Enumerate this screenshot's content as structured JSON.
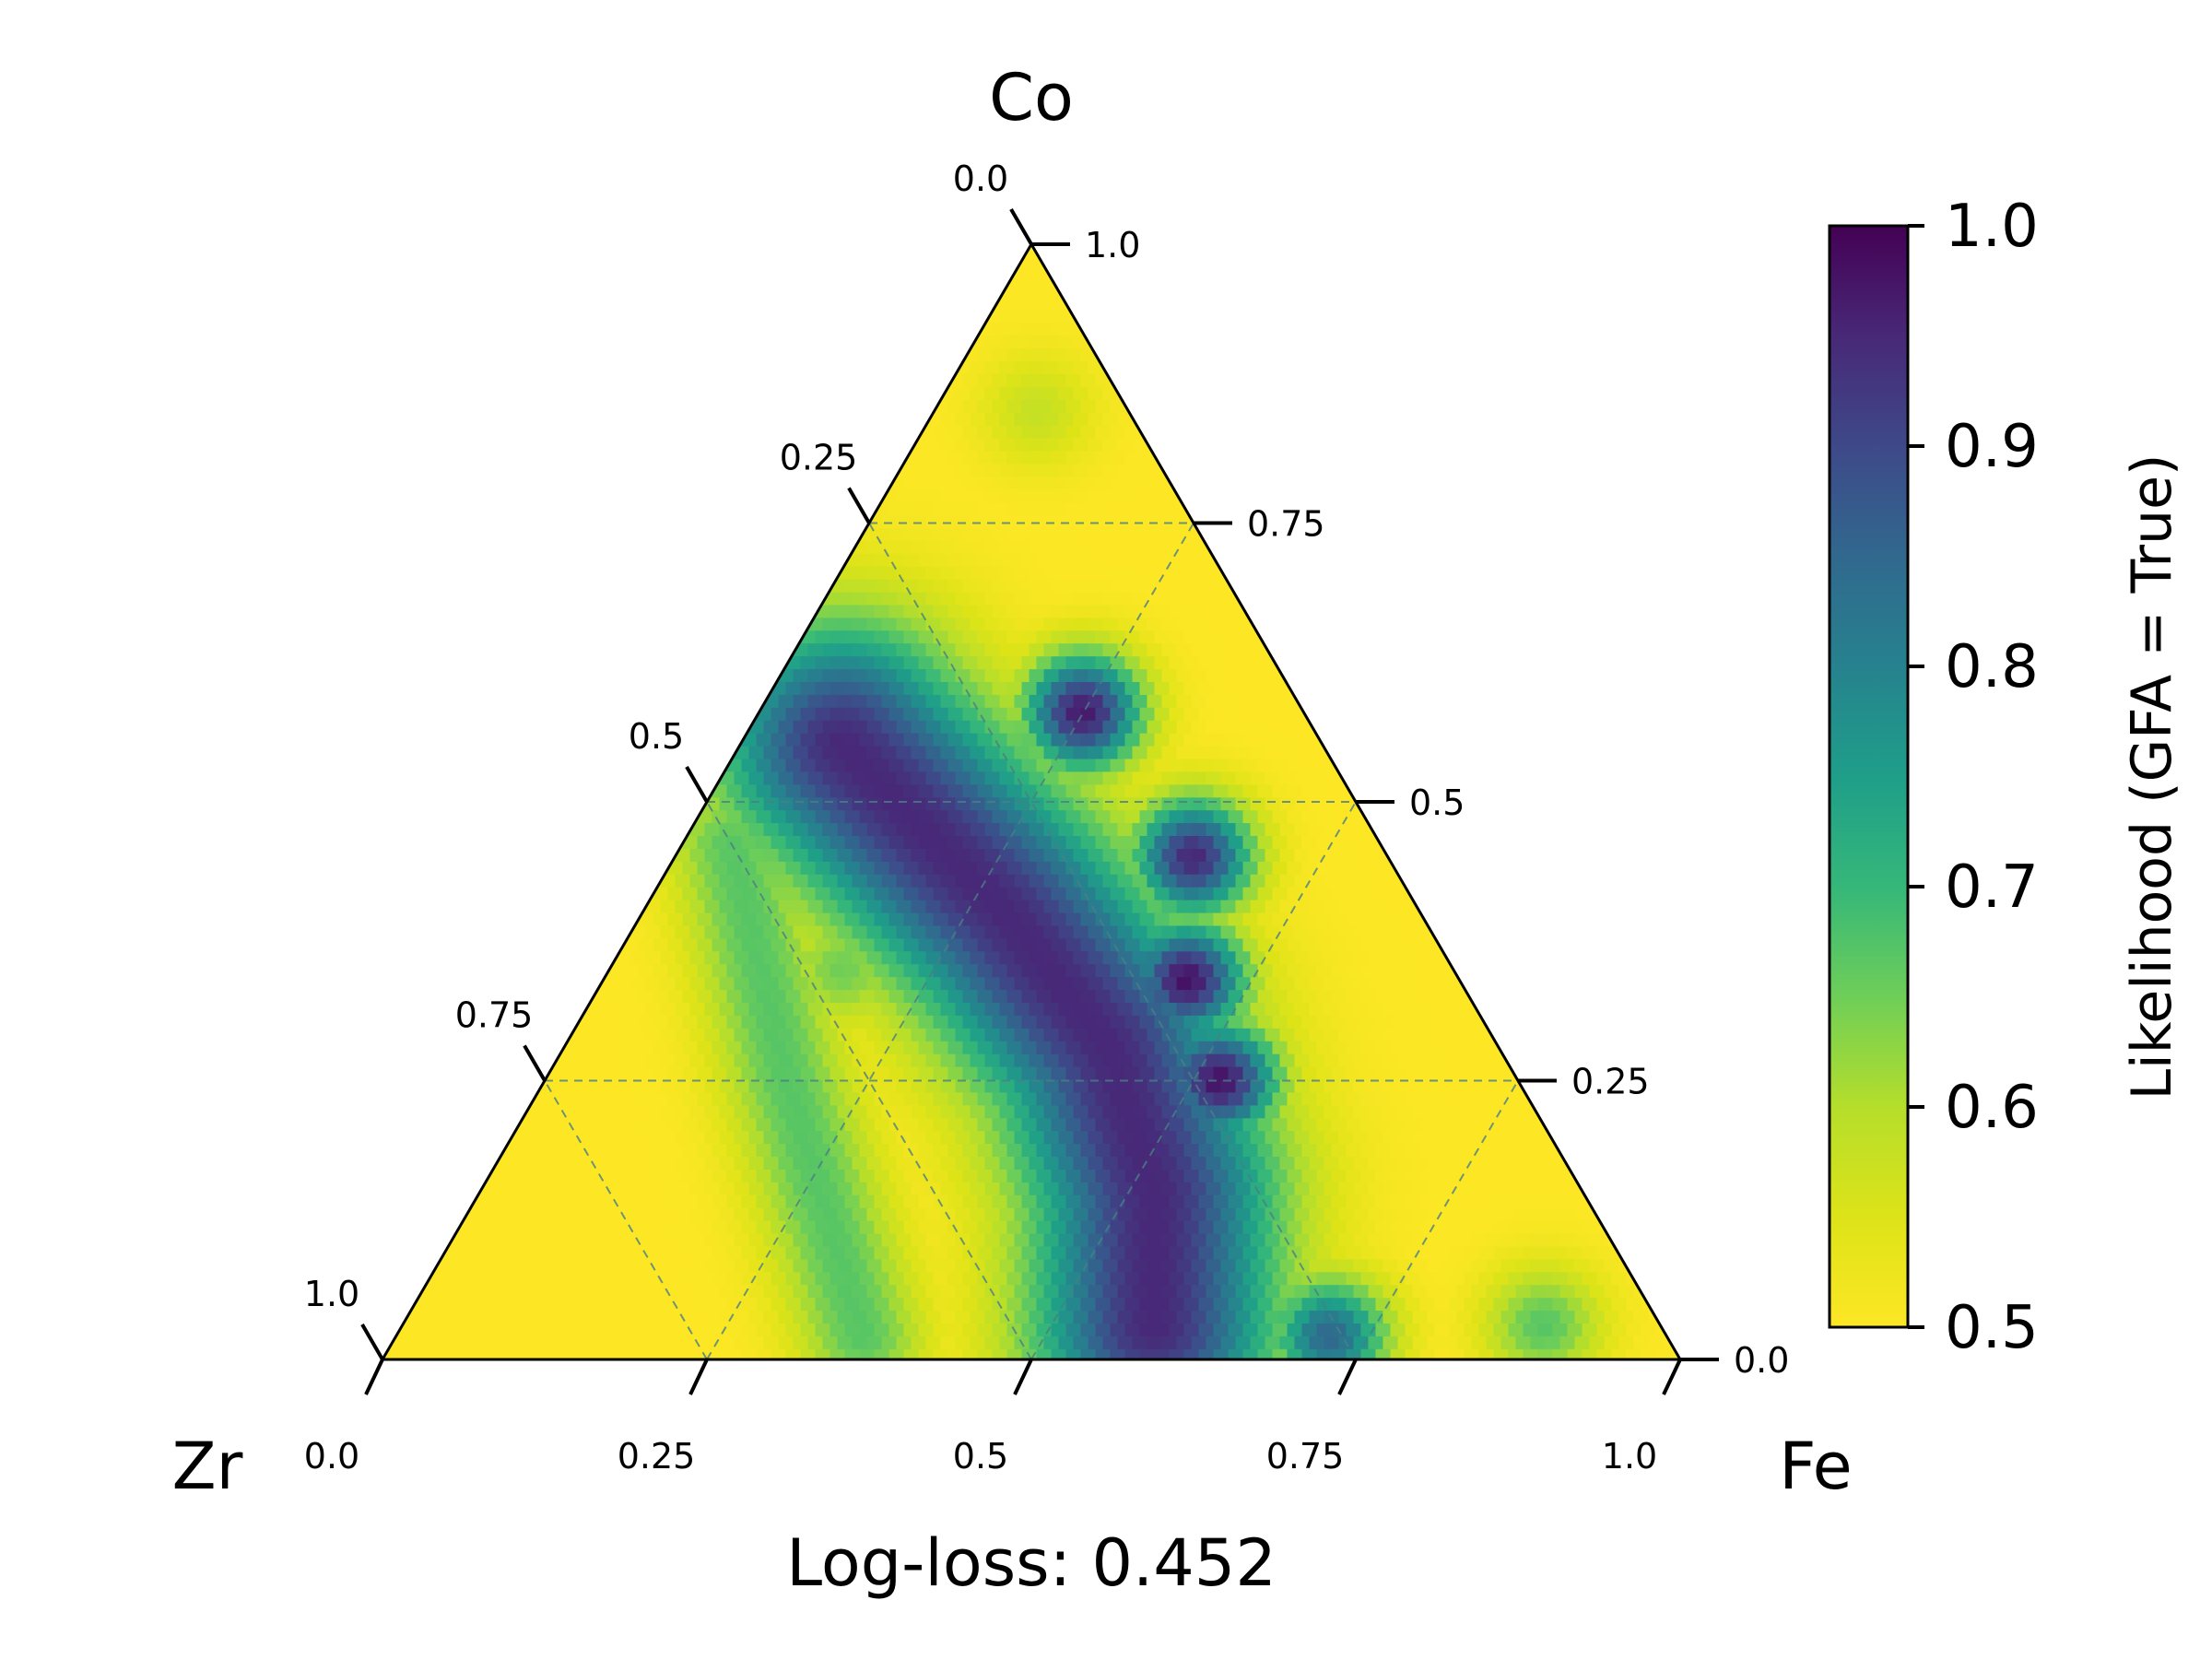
{
  "chart_data": {
    "type": "heatmap",
    "subtype": "ternary",
    "colormap": "viridis_r",
    "vertices": {
      "top": "Co",
      "left": "Zr",
      "right": "Fe"
    },
    "title": "",
    "footer": "Log-loss: 0.452",
    "colorbar": {
      "label": "Likelihood (GFA = True)",
      "range": [
        0.5,
        1.0
      ],
      "ticks": [
        "1.0",
        "0.9",
        "0.8",
        "0.7",
        "0.6",
        "0.5"
      ],
      "tick_values": [
        1.0,
        0.9,
        0.8,
        0.7,
        0.6,
        0.5
      ]
    },
    "axes": {
      "bottom": {
        "name": "Fe",
        "ticks": [
          "0.0",
          "0.25",
          "0.5",
          "0.75",
          "1.0"
        ],
        "tick_values": [
          0.0,
          0.25,
          0.5,
          0.75,
          1.0
        ]
      },
      "right": {
        "name": "Co",
        "ticks": [
          "0.0",
          "0.25",
          "0.5",
          "0.75",
          "1.0"
        ],
        "tick_values": [
          0.0,
          0.25,
          0.5,
          0.75,
          1.0
        ]
      },
      "left": {
        "name": "Zr",
        "ticks": [
          "0.0",
          "0.25",
          "0.5",
          "0.75",
          "1.0"
        ],
        "tick_values": [
          0.0,
          0.25,
          0.5,
          0.75,
          1.0
        ]
      }
    },
    "grid": true,
    "grid_style": "dashed",
    "regions": [
      {
        "description": "high-likelihood ridge",
        "fe": 0.4,
        "co": 0.45,
        "value": 0.95
      },
      {
        "description": "high-likelihood ridge",
        "fe": 0.25,
        "co": 0.58,
        "value": 0.97
      },
      {
        "description": "high-likelihood ridge",
        "fe": 0.45,
        "co": 0.34,
        "value": 0.98
      },
      {
        "description": "high-likelihood ridge",
        "fe": 0.52,
        "co": 0.25,
        "value": 0.98
      },
      {
        "description": "high-likelihood ridge",
        "fe": 0.58,
        "co": 0.08,
        "value": 0.9
      },
      {
        "description": "high-likelihood ridge",
        "fe": 0.72,
        "co": 0.02,
        "value": 0.85
      },
      {
        "description": "moderate lobe",
        "fe": 0.88,
        "co": 0.03,
        "value": 0.67
      },
      {
        "description": "moderate lobe",
        "fe": 0.08,
        "co": 0.85,
        "value": 0.58
      },
      {
        "description": "moderate lobe",
        "fe": 0.18,
        "co": 0.35,
        "value": 0.65
      }
    ]
  }
}
